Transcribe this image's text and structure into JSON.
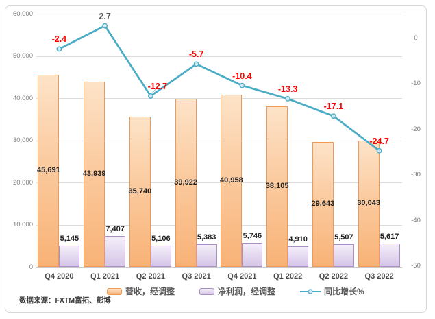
{
  "source_note": "数据来源：FXTM富拓、彭博",
  "chart_data": {
    "type": "combo-bar-line",
    "title": "",
    "categories": [
      "Q4 2020",
      "Q1 2021",
      "Q2 2021",
      "Q3 2021",
      "Q4 2021",
      "Q1 2022",
      "Q2 2022",
      "Q3 2022"
    ],
    "series": [
      {
        "name": "营收，经调整",
        "type": "bar",
        "axis": "left",
        "values": [
          45691,
          43939,
          35740,
          39922,
          40958,
          38105,
          29643,
          30043
        ],
        "fill_top": "#FDE3C8",
        "fill_bottom": "#F8B276",
        "border_color": "#F09A56",
        "label_position": "inside-center"
      },
      {
        "name": "净利润，经调整",
        "type": "bar",
        "axis": "left",
        "values": [
          5145,
          7407,
          5106,
          5383,
          5746,
          4910,
          5507,
          5617
        ],
        "fill_top": "#F4EFF9",
        "fill_bottom": "#D5C5E7",
        "border_color": "#A98FC5",
        "label_position": "outside-end"
      },
      {
        "name": "同比增长%",
        "type": "line",
        "axis": "right",
        "values": [
          -2.4,
          2.7,
          -12.7,
          -5.7,
          -10.4,
          -13.3,
          -17.1,
          -24.7
        ],
        "color": "#4BACC6",
        "marker_fill": "#D2EAF2"
      }
    ],
    "left_axis": {
      "min": 0,
      "max": 60000,
      "ticks": [
        0,
        10000,
        20000,
        30000,
        40000,
        50000,
        60000
      ]
    },
    "right_axis": {
      "ticks": [
        0,
        -10,
        -20,
        -30,
        -40,
        -50
      ]
    },
    "legend_position": "bottom",
    "grid": true,
    "colors": {
      "gridline": "#DCDCDC",
      "axis_text": "#7F7F7F",
      "bar_value_label": "#1F1F1F",
      "growth_label_negative": "#FF0000",
      "growth_label_positive": "#595959",
      "line": "#4BACC6"
    }
  }
}
